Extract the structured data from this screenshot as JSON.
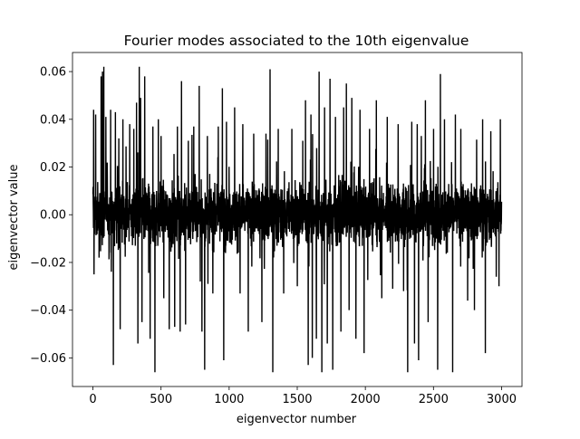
{
  "chart_data": {
    "type": "line",
    "title": "Fourier modes associated to the 10th eigenvalue",
    "xlabel": "eigenvector number",
    "ylabel": "eigenvector value",
    "xlim": [
      -150,
      3150
    ],
    "ylim": [
      -0.072,
      0.068
    ],
    "xticks": [
      0,
      500,
      1000,
      1500,
      2000,
      2500,
      3000
    ],
    "xtick_labels": [
      "0",
      "500",
      "1000",
      "1500",
      "2000",
      "2500",
      "3000"
    ],
    "yticks": [
      -0.06,
      -0.04,
      -0.02,
      0.0,
      0.02,
      0.04,
      0.06
    ],
    "ytick_labels": [
      "−0.06",
      "−0.04",
      "−0.02",
      "0.00",
      "0.02",
      "0.04",
      "0.06"
    ],
    "grid": false,
    "series": [
      {
        "color": "#000000",
        "n_points": 3000,
        "x_start": 0,
        "x_end": 3000,
        "y_range": [
          -0.066,
          0.063
        ],
        "core_band": [
          -0.02,
          0.024
        ],
        "spikes": [
          {
            "x": 5,
            "y": 0.044
          },
          {
            "x": 8,
            "y": -0.025
          },
          {
            "x": 20,
            "y": 0.042
          },
          {
            "x": 45,
            "y": -0.018
          },
          {
            "x": 60,
            "y": 0.058
          },
          {
            "x": 70,
            "y": 0.06
          },
          {
            "x": 80,
            "y": 0.062
          },
          {
            "x": 95,
            "y": 0.041
          },
          {
            "x": 130,
            "y": 0.044
          },
          {
            "x": 150,
            "y": -0.063
          },
          {
            "x": 165,
            "y": 0.043
          },
          {
            "x": 190,
            "y": 0.032
          },
          {
            "x": 200,
            "y": -0.048
          },
          {
            "x": 220,
            "y": 0.04
          },
          {
            "x": 270,
            "y": 0.038
          },
          {
            "x": 300,
            "y": 0.036
          },
          {
            "x": 320,
            "y": 0.047
          },
          {
            "x": 330,
            "y": -0.054
          },
          {
            "x": 340,
            "y": 0.062
          },
          {
            "x": 350,
            "y": 0.049
          },
          {
            "x": 360,
            "y": -0.045
          },
          {
            "x": 380,
            "y": 0.058
          },
          {
            "x": 420,
            "y": -0.052
          },
          {
            "x": 440,
            "y": 0.037
          },
          {
            "x": 455,
            "y": -0.066
          },
          {
            "x": 480,
            "y": 0.04
          },
          {
            "x": 500,
            "y": 0.033
          },
          {
            "x": 520,
            "y": -0.035
          },
          {
            "x": 560,
            "y": -0.048
          },
          {
            "x": 600,
            "y": -0.047
          },
          {
            "x": 620,
            "y": 0.037
          },
          {
            "x": 640,
            "y": -0.049
          },
          {
            "x": 650,
            "y": 0.056
          },
          {
            "x": 680,
            "y": -0.046
          },
          {
            "x": 700,
            "y": 0.031
          },
          {
            "x": 740,
            "y": 0.037
          },
          {
            "x": 780,
            "y": 0.054
          },
          {
            "x": 800,
            "y": -0.049
          },
          {
            "x": 820,
            "y": -0.065
          },
          {
            "x": 840,
            "y": 0.033
          },
          {
            "x": 880,
            "y": -0.033
          },
          {
            "x": 920,
            "y": 0.037
          },
          {
            "x": 950,
            "y": 0.053
          },
          {
            "x": 960,
            "y": -0.061
          },
          {
            "x": 980,
            "y": 0.039
          },
          {
            "x": 1040,
            "y": 0.045
          },
          {
            "x": 1080,
            "y": -0.033
          },
          {
            "x": 1100,
            "y": 0.038
          },
          {
            "x": 1140,
            "y": -0.049
          },
          {
            "x": 1180,
            "y": 0.034
          },
          {
            "x": 1240,
            "y": -0.045
          },
          {
            "x": 1270,
            "y": 0.034
          },
          {
            "x": 1300,
            "y": 0.061
          },
          {
            "x": 1320,
            "y": -0.066
          },
          {
            "x": 1360,
            "y": 0.036
          },
          {
            "x": 1400,
            "y": -0.033
          },
          {
            "x": 1460,
            "y": 0.036
          },
          {
            "x": 1500,
            "y": -0.03
          },
          {
            "x": 1540,
            "y": 0.031
          },
          {
            "x": 1560,
            "y": 0.048
          },
          {
            "x": 1580,
            "y": -0.063
          },
          {
            "x": 1600,
            "y": 0.042
          },
          {
            "x": 1610,
            "y": -0.06
          },
          {
            "x": 1640,
            "y": -0.052
          },
          {
            "x": 1660,
            "y": 0.06
          },
          {
            "x": 1680,
            "y": -0.066
          },
          {
            "x": 1700,
            "y": 0.045
          },
          {
            "x": 1720,
            "y": -0.054
          },
          {
            "x": 1740,
            "y": 0.057
          },
          {
            "x": 1760,
            "y": -0.065
          },
          {
            "x": 1780,
            "y": 0.041
          },
          {
            "x": 1820,
            "y": -0.049
          },
          {
            "x": 1840,
            "y": 0.045
          },
          {
            "x": 1860,
            "y": 0.055
          },
          {
            "x": 1880,
            "y": -0.04
          },
          {
            "x": 1900,
            "y": 0.049
          },
          {
            "x": 1930,
            "y": -0.052
          },
          {
            "x": 1960,
            "y": 0.044
          },
          {
            "x": 1990,
            "y": -0.058
          },
          {
            "x": 2030,
            "y": 0.036
          },
          {
            "x": 2080,
            "y": 0.048
          },
          {
            "x": 2120,
            "y": -0.035
          },
          {
            "x": 2160,
            "y": 0.041
          },
          {
            "x": 2200,
            "y": -0.031
          },
          {
            "x": 2240,
            "y": 0.038
          },
          {
            "x": 2280,
            "y": -0.032
          },
          {
            "x": 2310,
            "y": -0.066
          },
          {
            "x": 2340,
            "y": 0.039
          },
          {
            "x": 2360,
            "y": -0.054
          },
          {
            "x": 2380,
            "y": 0.038
          },
          {
            "x": 2390,
            "y": -0.061
          },
          {
            "x": 2410,
            "y": 0.033
          },
          {
            "x": 2440,
            "y": 0.048
          },
          {
            "x": 2460,
            "y": -0.045
          },
          {
            "x": 2500,
            "y": 0.036
          },
          {
            "x": 2530,
            "y": -0.065
          },
          {
            "x": 2550,
            "y": 0.059
          },
          {
            "x": 2580,
            "y": 0.04
          },
          {
            "x": 2640,
            "y": -0.066
          },
          {
            "x": 2660,
            "y": 0.042
          },
          {
            "x": 2700,
            "y": 0.036
          },
          {
            "x": 2750,
            "y": -0.036
          },
          {
            "x": 2800,
            "y": -0.04
          },
          {
            "x": 2860,
            "y": 0.04
          },
          {
            "x": 2880,
            "y": -0.058
          },
          {
            "x": 2920,
            "y": 0.035
          },
          {
            "x": 2960,
            "y": -0.026
          },
          {
            "x": 2980,
            "y": -0.03
          },
          {
            "x": 2990,
            "y": 0.04
          }
        ]
      }
    ]
  }
}
